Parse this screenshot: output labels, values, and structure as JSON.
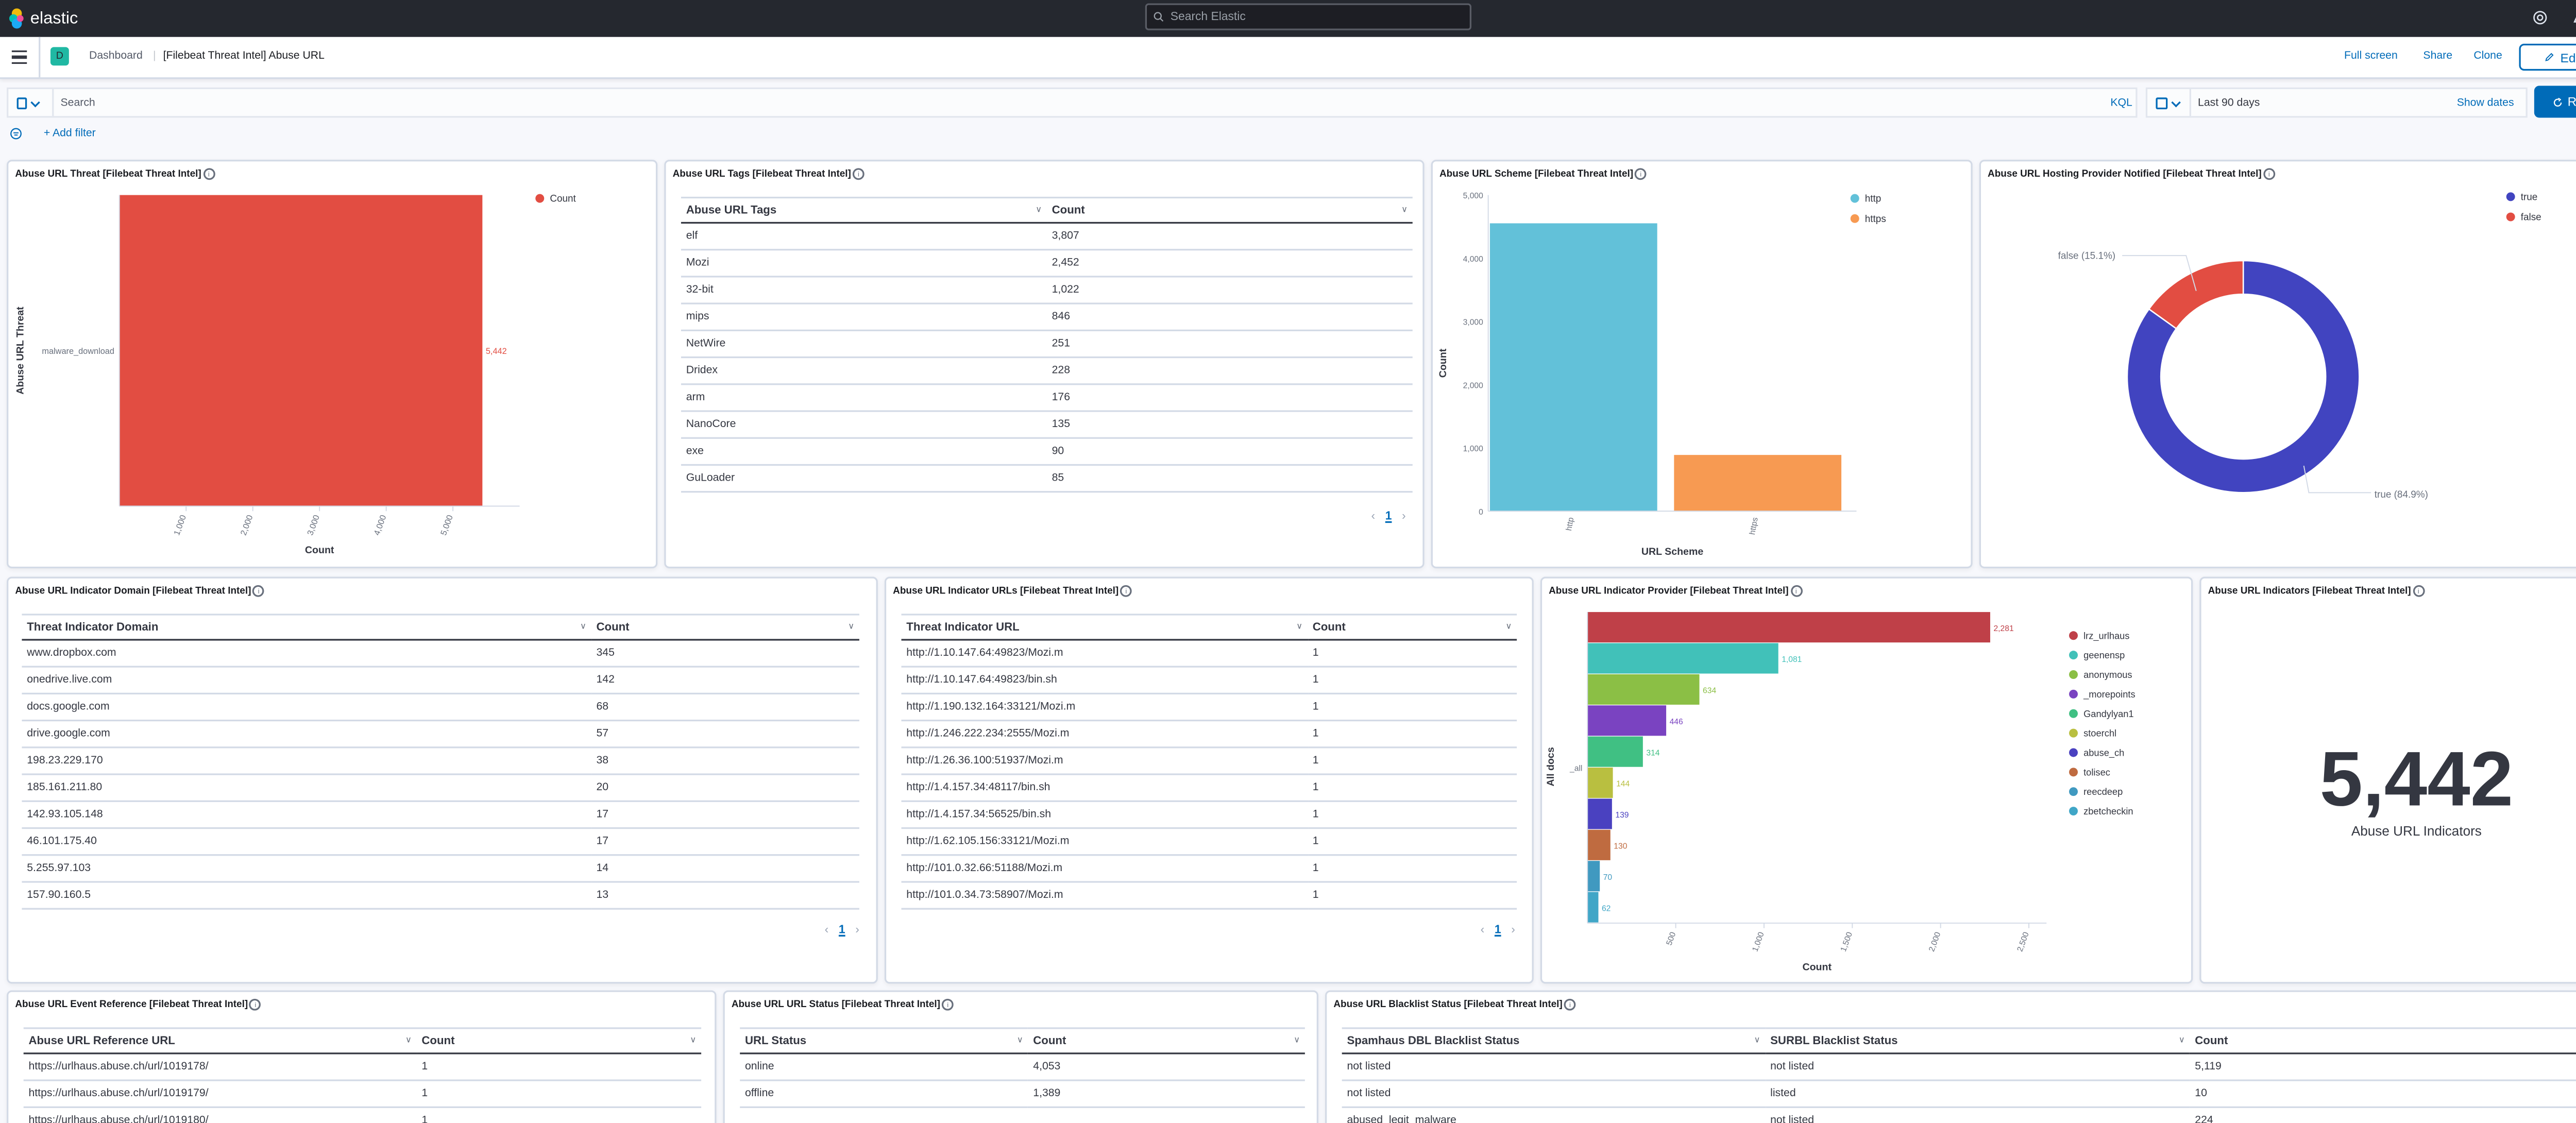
{
  "topbar": {
    "brand": "elastic",
    "search_placeholder": "Search Elastic",
    "avatar_initial": "e"
  },
  "navbar": {
    "space_initial": "D",
    "breadcrumb_root": "Dashboard",
    "breadcrumb_current": "[Filebeat Threat Intel] Abuse URL",
    "full_screen": "Full screen",
    "share": "Share",
    "clone": "Clone",
    "edit": "Edit"
  },
  "query": {
    "search_placeholder": "Search",
    "language": "KQL",
    "time_range": "Last 90 days",
    "show_dates": "Show dates",
    "refresh": "Refresh",
    "add_filter": "+ Add filter"
  },
  "colors": {
    "accent": "#006bb8",
    "topbar": "#25282f",
    "threat_bar": "#e24d42",
    "http": "#62c1d9",
    "https": "#f79a52",
    "true": "#4144c0",
    "false": "#e24d42"
  },
  "panels": {
    "threat": {
      "title": "Abuse URL Threat [Filebeat Threat Intel]"
    },
    "tags": {
      "title": "Abuse URL Tags [Filebeat Threat Intel]"
    },
    "scheme": {
      "title": "Abuse URL Scheme [Filebeat Threat Intel]"
    },
    "notified": {
      "title": "Abuse URL Hosting Provider Notified [Filebeat Threat Intel]"
    },
    "domain": {
      "title": "Abuse URL Indicator Domain [Filebeat Threat Intel]"
    },
    "urls": {
      "title": "Abuse URL Indicator URLs [Filebeat Threat Intel]"
    },
    "provider": {
      "title": "Abuse URL Indicator Provider [Filebeat Threat Intel]"
    },
    "indicators": {
      "title": "Abuse URL Indicators [Filebeat Threat Intel]",
      "value": "5,442",
      "label": "Abuse URL Indicators"
    },
    "event_ref": {
      "title": "Abuse URL Event Reference [Filebeat Threat Intel]"
    },
    "status": {
      "title": "Abuse URL URL Status [Filebeat Threat Intel]"
    },
    "blacklist": {
      "title": "Abuse URL Blacklist Status [Filebeat Threat Intel]"
    }
  },
  "tables": {
    "tags": {
      "headers": [
        "Abuse URL Tags",
        "Count"
      ],
      "rows": [
        [
          "elf",
          "3,807"
        ],
        [
          "Mozi",
          "2,452"
        ],
        [
          "32-bit",
          "1,022"
        ],
        [
          "mips",
          "846"
        ],
        [
          "NetWire",
          "251"
        ],
        [
          "Dridex",
          "228"
        ],
        [
          "arm",
          "176"
        ],
        [
          "NanoCore",
          "135"
        ],
        [
          "exe",
          "90"
        ],
        [
          "GuLoader",
          "85"
        ]
      ],
      "page": "1"
    },
    "domain": {
      "headers": [
        "Threat Indicator Domain",
        "Count"
      ],
      "rows": [
        [
          "www.dropbox.com",
          "345"
        ],
        [
          "onedrive.live.com",
          "142"
        ],
        [
          "docs.google.com",
          "68"
        ],
        [
          "drive.google.com",
          "57"
        ],
        [
          "198.23.229.170",
          "38"
        ],
        [
          "185.161.211.80",
          "20"
        ],
        [
          "142.93.105.148",
          "17"
        ],
        [
          "46.101.175.40",
          "17"
        ],
        [
          "5.255.97.103",
          "14"
        ],
        [
          "157.90.160.5",
          "13"
        ]
      ],
      "page": "1"
    },
    "urls": {
      "headers": [
        "Threat Indicator URL",
        "Count"
      ],
      "rows": [
        [
          "http://1.10.147.64:49823/Mozi.m",
          "1"
        ],
        [
          "http://1.10.147.64:49823/bin.sh",
          "1"
        ],
        [
          "http://1.190.132.164:33121/Mozi.m",
          "1"
        ],
        [
          "http://1.246.222.234:2555/Mozi.m",
          "1"
        ],
        [
          "http://1.26.36.100:51937/Mozi.m",
          "1"
        ],
        [
          "http://1.4.157.34:48117/bin.sh",
          "1"
        ],
        [
          "http://1.4.157.34:56525/bin.sh",
          "1"
        ],
        [
          "http://1.62.105.156:33121/Mozi.m",
          "1"
        ],
        [
          "http://101.0.32.66:51188/Mozi.m",
          "1"
        ],
        [
          "http://101.0.34.73:58907/Mozi.m",
          "1"
        ]
      ],
      "page": "1"
    },
    "event_ref": {
      "headers": [
        "Abuse URL Reference URL",
        "Count"
      ],
      "rows": [
        [
          "https://urlhaus.abuse.ch/url/1019178/",
          "1"
        ],
        [
          "https://urlhaus.abuse.ch/url/1019179/",
          "1"
        ],
        [
          "https://urlhaus.abuse.ch/url/1019180/",
          "1"
        ]
      ]
    },
    "status": {
      "headers": [
        "URL Status",
        "Count"
      ],
      "rows": [
        [
          "online",
          "4,053"
        ],
        [
          "offline",
          "1,389"
        ]
      ]
    },
    "blacklist": {
      "headers": [
        "Spamhaus DBL Blacklist Status",
        "SURBL Blacklist Status",
        "Count"
      ],
      "rows": [
        [
          "not listed",
          "not listed",
          "5,119"
        ],
        [
          "not listed",
          "listed",
          "10"
        ],
        [
          "abused_legit_malware",
          "not listed",
          "224"
        ]
      ]
    }
  },
  "chart_data": [
    {
      "id": "threat",
      "type": "bar",
      "orientation": "horizontal",
      "categories": [
        "malware_download"
      ],
      "values": [
        5442
      ],
      "value_labels": [
        "5,442"
      ],
      "xlabel": "Count",
      "ylabel": "Abuse URL Threat",
      "xlim": [
        0,
        6000
      ],
      "xticks": [
        "1,000",
        "2,000",
        "3,000",
        "4,000",
        "5,000"
      ],
      "legend": [
        {
          "name": "Count",
          "color": "#e24d42"
        }
      ],
      "legend_position": "top-right"
    },
    {
      "id": "scheme",
      "type": "bar",
      "orientation": "vertical",
      "categories": [
        "http",
        "https"
      ],
      "values": [
        4553,
        889
      ],
      "colors": [
        "#62c1d9",
        "#f79a52"
      ],
      "xlabel": "URL Scheme",
      "ylabel": "Count",
      "ylim": [
        0,
        5000
      ],
      "yticks": [
        "0",
        "1,000",
        "2,000",
        "3,000",
        "4,000",
        "5,000"
      ],
      "legend": [
        {
          "name": "http",
          "color": "#62c1d9"
        },
        {
          "name": "https",
          "color": "#f79a52"
        }
      ],
      "legend_position": "top-right"
    },
    {
      "id": "notified",
      "type": "pie",
      "donut": true,
      "slices": [
        {
          "name": "true",
          "value": 84.9,
          "label": "true (84.9%)",
          "color": "#4144c0"
        },
        {
          "name": "false",
          "value": 15.1,
          "label": "false (15.1%)",
          "color": "#e24d42"
        }
      ],
      "legend": [
        {
          "name": "true",
          "color": "#4144c0"
        },
        {
          "name": "false",
          "color": "#e24d42"
        }
      ],
      "legend_position": "top-right"
    },
    {
      "id": "provider",
      "type": "bar",
      "orientation": "horizontal",
      "stacked_groups": true,
      "group_label": "_all",
      "xlabel": "Count",
      "ylabel": "All docs",
      "xlim": [
        0,
        2600
      ],
      "xticks": [
        "500",
        "1,000",
        "1,500",
        "2,000",
        "2,500"
      ],
      "legend_position": "right",
      "series": [
        {
          "name": "lrz_urlhaus",
          "value": 2281,
          "label": "2,281",
          "color": "#bf4048"
        },
        {
          "name": "geenensp",
          "value": 1081,
          "label": "1,081",
          "color": "#41c1b9"
        },
        {
          "name": "anonymous",
          "value": 634,
          "label": "634",
          "color": "#8bbf45"
        },
        {
          "name": "_morepoints",
          "value": 446,
          "label": "446",
          "color": "#7a43c1"
        },
        {
          "name": "Gandylyan1",
          "value": 314,
          "label": "314",
          "color": "#40c083"
        },
        {
          "name": "stoerchl",
          "value": 144,
          "label": "144",
          "color": "#b9bf40"
        },
        {
          "name": "abuse_ch",
          "value": 139,
          "label": "139",
          "color": "#4a41c0"
        },
        {
          "name": "tolisec",
          "value": 130,
          "label": "130",
          "color": "#bf6b40"
        },
        {
          "name": "reecdeep",
          "value": 70,
          "label": "70",
          "color": "#4099c0"
        },
        {
          "name": "zbetcheckin",
          "value": 62,
          "label": "62",
          "color": "#40a6c7"
        }
      ]
    }
  ]
}
